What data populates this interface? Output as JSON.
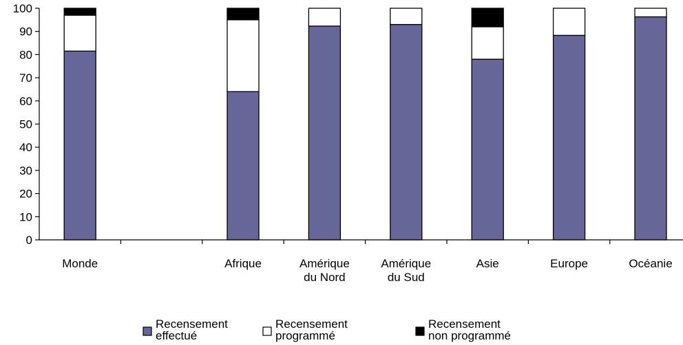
{
  "chart_data": {
    "type": "bar",
    "stacked": true,
    "categories": [
      [
        "Monde"
      ],
      [
        ""
      ],
      [
        "Afrique"
      ],
      [
        "Amérique",
        "du Nord"
      ],
      [
        "Amérique",
        "du Sud"
      ],
      [
        "Asie"
      ],
      [
        "Europe"
      ],
      [
        "Océanie"
      ]
    ],
    "series": [
      {
        "name": [
          "Recensement",
          "effectué"
        ],
        "color": "#666699",
        "values": [
          81.5,
          null,
          64,
          92.3,
          93,
          78,
          88.3,
          96.3
        ]
      },
      {
        "name": [
          "Recensement",
          "programmé"
        ],
        "color": "#ffffff",
        "values": [
          15.5,
          null,
          31,
          7.7,
          7,
          14,
          11.7,
          3.7
        ]
      },
      {
        "name": [
          "Recensement",
          "non programmé"
        ],
        "color": "#000000",
        "values": [
          3,
          null,
          5,
          0,
          0,
          8,
          0,
          0
        ]
      }
    ],
    "yticks": [
      "0",
      "10",
      "20",
      "30",
      "40",
      "50",
      "60",
      "70",
      "80",
      "90",
      "100"
    ],
    "ylim": [
      0,
      100
    ],
    "grid": false,
    "legend": "bottom"
  }
}
